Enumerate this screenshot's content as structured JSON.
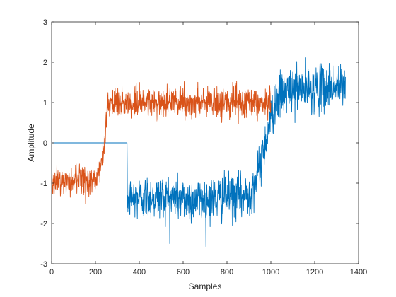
{
  "chart_data": {
    "type": "line",
    "title": "",
    "xlabel": "Samples",
    "ylabel": "Amplitude",
    "xlim": [
      0,
      1400
    ],
    "ylim": [
      -3,
      3
    ],
    "xticks": [
      0,
      200,
      400,
      600,
      800,
      1000,
      1200,
      1400
    ],
    "yticks": [
      -3,
      -2,
      -1,
      0,
      1,
      2,
      3
    ],
    "xtick_labels": [
      "0",
      "200",
      "400",
      "600",
      "800",
      "1000",
      "1200",
      "1400"
    ],
    "ytick_labels": [
      "-3",
      "-2",
      "-1",
      "0",
      "1",
      "2",
      "3"
    ],
    "grid": false,
    "legend": "none",
    "series": [
      {
        "color": "#0072BD",
        "x": [
          0,
          344,
          345,
          400,
          500,
          600,
          700,
          800,
          880,
          910,
          940,
          970,
          1000,
          1020,
          1050,
          1100,
          1200,
          1300,
          1340
        ],
        "values": [
          0,
          0,
          -1.4,
          -1.35,
          -1.35,
          -1.4,
          -1.4,
          -1.35,
          -1.35,
          -1.2,
          -0.8,
          -0.1,
          0.6,
          1.0,
          1.2,
          1.3,
          1.35,
          1.4,
          1.4
        ],
        "noise": 0.28,
        "noise_start": 345
      },
      {
        "color": "#D95319",
        "x": [
          0,
          100,
          200,
          225,
          240,
          250,
          262,
          280,
          400,
          600,
          800,
          1000
        ],
        "values": [
          -0.95,
          -0.95,
          -0.95,
          -0.6,
          0.0,
          0.6,
          0.95,
          1.0,
          1.02,
          1.0,
          1.0,
          1.0
        ],
        "noise": 0.18,
        "noise_start": 0
      }
    ]
  }
}
